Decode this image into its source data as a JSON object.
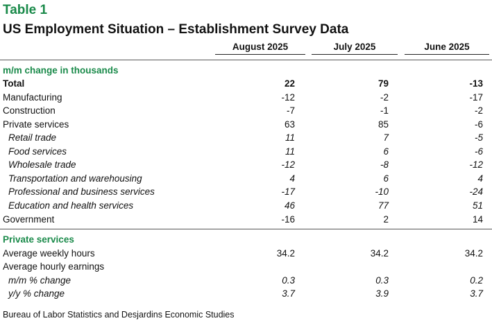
{
  "table_label": "Table 1",
  "title": "US Employment Situation – Establishment Survey Data",
  "columns": [
    "August 2025",
    "July 2025",
    "June 2025"
  ],
  "sections": {
    "mm_change": "m/m change in thousands",
    "private_services": "Private services"
  },
  "rows": [
    {
      "label": "Total",
      "values": [
        "22",
        "79",
        "-13"
      ]
    },
    {
      "label": "Manufacturing",
      "values": [
        "-12",
        "-2",
        "-17"
      ]
    },
    {
      "label": "Construction",
      "values": [
        "-7",
        "-1",
        "-2"
      ]
    },
    {
      "label": "Private services",
      "values": [
        "63",
        "85",
        "-6"
      ]
    },
    {
      "label": "Retail trade",
      "values": [
        "11",
        "7",
        "-5"
      ]
    },
    {
      "label": "Food services",
      "values": [
        "11",
        "6",
        "-6"
      ]
    },
    {
      "label": "Wholesale trade",
      "values": [
        "-12",
        "-8",
        "-12"
      ]
    },
    {
      "label": "Transportation and warehousing",
      "values": [
        "4",
        "6",
        "4"
      ]
    },
    {
      "label": "Professional and business services",
      "values": [
        "-17",
        "-10",
        "-24"
      ]
    },
    {
      "label": "Education and health services",
      "values": [
        "46",
        "77",
        "51"
      ]
    },
    {
      "label": "Government",
      "values": [
        "-16",
        "2",
        "14"
      ]
    }
  ],
  "private_rows": [
    {
      "label": "Average weekly hours",
      "values": [
        "34.2",
        "34.2",
        "34.2"
      ]
    },
    {
      "label": "Average hourly earnings"
    },
    {
      "label": "m/m % change",
      "values": [
        "0.3",
        "0.3",
        "0.2"
      ]
    },
    {
      "label": "y/y % change",
      "values": [
        "3.7",
        "3.9",
        "3.7"
      ]
    }
  ],
  "source": "Bureau of Labor Statistics and Desjardins Economic Studies",
  "accent_color": "#1a8a4a"
}
